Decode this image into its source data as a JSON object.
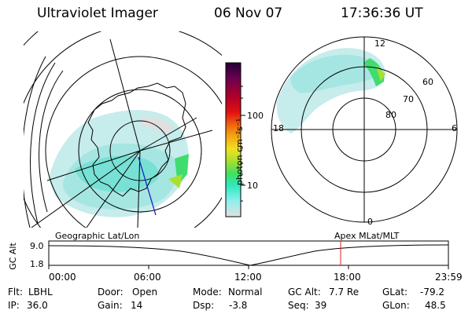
{
  "header": {
    "instrument": "Ultraviolet Imager",
    "date": "06 Nov 07",
    "time": "17:36:36 UT"
  },
  "colorbar": {
    "unit": "photon cm⁻²s⁻¹",
    "ticks": [
      "100",
      "10"
    ],
    "colors": [
      "#220033",
      "#6a0050",
      "#b0002a",
      "#e01010",
      "#f06010",
      "#f4a010",
      "#f0e020",
      "#a8e030",
      "#40e060",
      "#30e8c0",
      "#90f0ec",
      "#e0e0e0"
    ]
  },
  "right_polar": {
    "mlt_labels": [
      "12",
      "18",
      "6",
      "0"
    ],
    "lat_labels": [
      "60",
      "70",
      "80"
    ]
  },
  "timeline": {
    "ylabel": "GC Alt",
    "y_ticks": [
      "9.0",
      "1.8"
    ],
    "left_label": "Geographic Lat/Lon",
    "right_label": "Apex MLat/MLT",
    "x_ticks": [
      "00:00",
      "06:00",
      "12:00",
      "18:00",
      "23:59"
    ],
    "marker_color": "#e02020"
  },
  "info": {
    "flt_label": "Flt:",
    "flt_value": "LBHL",
    "ip_label": "IP:",
    "ip_value": "36.0",
    "door_label": "Door:",
    "door_value": "Open",
    "gain_label": "Gain:",
    "gain_value": "14",
    "mode_label": "Mode:",
    "mode_value": "Normal",
    "dsp_label": "Dsp:",
    "dsp_value": "-3.8",
    "gcalt_label": "GC Alt:",
    "gcalt_value": "7.7 Re",
    "seq_label": "Seq:",
    "seq_value": "39",
    "glat_label": "GLat:",
    "glat_value": "-79.2",
    "glon_label": "GLon:",
    "glon_value": "48.5"
  }
}
